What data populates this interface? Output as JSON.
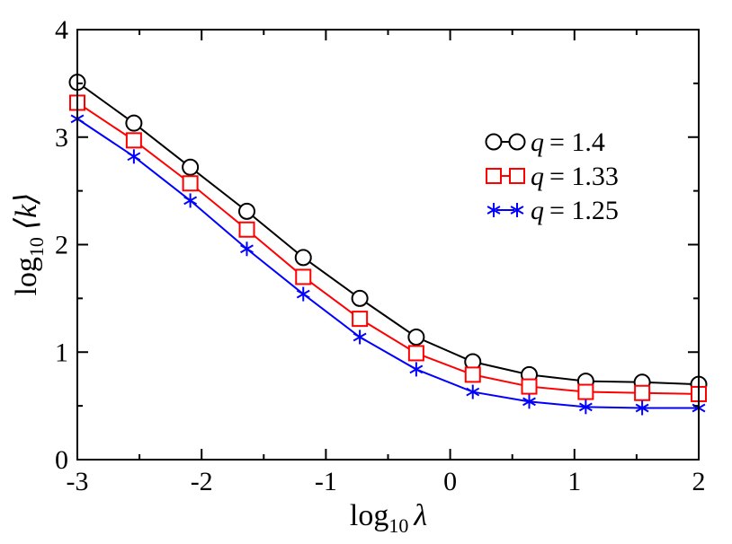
{
  "chart_data": {
    "type": "line",
    "title": "",
    "xlabel": "log10 λ",
    "xlabel_parts": {
      "base": "log",
      "sub": "10",
      "var": "λ"
    },
    "ylabel": "log10 ⟨k⟩",
    "ylabel_parts": {
      "base": "log",
      "sub": "10",
      "var": "⟨k⟩"
    },
    "xlim": [
      -3,
      2
    ],
    "ylim": [
      0,
      4
    ],
    "xticks": [
      "-3",
      "-2",
      "-1",
      "0",
      "1",
      "2"
    ],
    "yticks": [
      "0",
      "1",
      "2",
      "3",
      "4"
    ],
    "grid": false,
    "legend_position": "top-right",
    "x": [
      -3,
      -2.545,
      -2.091,
      -1.636,
      -1.182,
      -0.727,
      -0.273,
      0.182,
      0.636,
      1.091,
      1.545,
      2
    ],
    "series": [
      {
        "name": "q = 1.4",
        "label_var": "q",
        "label_val": "= 1.4",
        "color": "#000000",
        "marker": "circle",
        "values": [
          3.51,
          3.13,
          2.72,
          2.31,
          1.88,
          1.5,
          1.14,
          0.91,
          0.79,
          0.73,
          0.72,
          0.7
        ]
      },
      {
        "name": "q = 1.33",
        "label_var": "q",
        "label_val": "= 1.33",
        "color": "#ff0000",
        "marker": "square",
        "values": [
          3.32,
          2.97,
          2.57,
          2.14,
          1.7,
          1.31,
          0.99,
          0.79,
          0.68,
          0.63,
          0.62,
          0.61
        ]
      },
      {
        "name": "q = 1.25",
        "label_var": "q",
        "label_val": "= 1.25",
        "color": "#0000ff",
        "marker": "asterisk",
        "values": [
          3.17,
          2.82,
          2.41,
          1.96,
          1.54,
          1.14,
          0.84,
          0.63,
          0.54,
          0.49,
          0.48,
          0.48
        ]
      }
    ]
  }
}
